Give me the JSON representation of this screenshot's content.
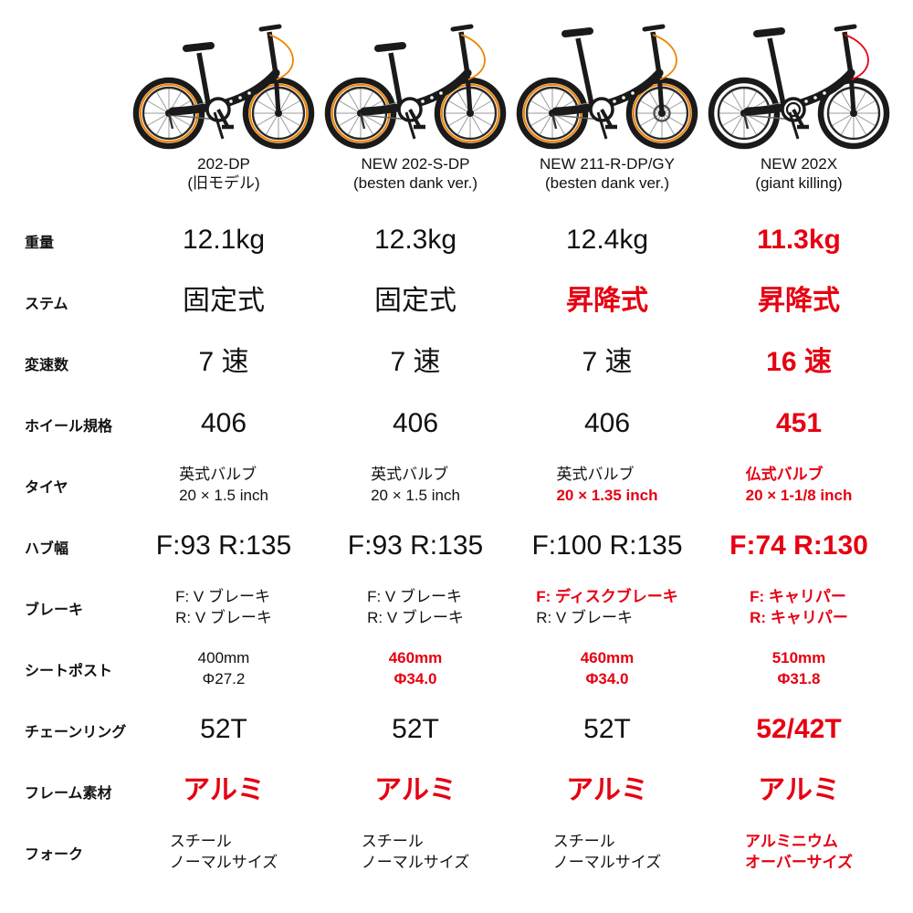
{
  "colors": {
    "text": "#111111",
    "highlight_red": "#e60012",
    "bike_accent_orange": "#f08300",
    "background": "#ffffff"
  },
  "products": [
    {
      "name": "202-DP",
      "subtitle": "(旧モデル)",
      "bike_style": {
        "rim_accent": true,
        "front_disc": false,
        "tall_seat": false,
        "cable_color": "#f08300",
        "double_chainring": false
      }
    },
    {
      "name": "NEW 202-S-DP",
      "subtitle": "(besten dank ver.)",
      "bike_style": {
        "rim_accent": true,
        "front_disc": false,
        "tall_seat": false,
        "cable_color": "#f08300",
        "double_chainring": false
      }
    },
    {
      "name": "NEW 211-R-DP/GY",
      "subtitle": "(besten dank ver.)",
      "bike_style": {
        "rim_accent": true,
        "front_disc": true,
        "tall_seat": true,
        "cable_color": "#f08300",
        "double_chainring": false
      }
    },
    {
      "name": "NEW 202X",
      "subtitle": "(giant killing)",
      "bike_style": {
        "rim_accent": false,
        "front_disc": false,
        "tall_seat": true,
        "cable_color": "#e60012",
        "double_chainring": true
      }
    }
  ],
  "table": {
    "rows": [
      {
        "key": "weight",
        "label": "重量",
        "size": "big",
        "align": "center",
        "cells": [
          {
            "lines": [
              {
                "text": "12.1kg",
                "red": false
              }
            ]
          },
          {
            "lines": [
              {
                "text": "12.3kg",
                "red": false
              }
            ]
          },
          {
            "lines": [
              {
                "text": "12.4kg",
                "red": false
              }
            ]
          },
          {
            "lines": [
              {
                "text": "11.3kg",
                "red": true
              }
            ]
          }
        ]
      },
      {
        "key": "stem",
        "label": "ステム",
        "size": "big",
        "align": "center",
        "cells": [
          {
            "lines": [
              {
                "text": "固定式",
                "red": false
              }
            ]
          },
          {
            "lines": [
              {
                "text": "固定式",
                "red": false
              }
            ]
          },
          {
            "lines": [
              {
                "text": "昇降式",
                "red": true
              }
            ]
          },
          {
            "lines": [
              {
                "text": "昇降式",
                "red": true
              }
            ]
          }
        ]
      },
      {
        "key": "speeds",
        "label": "変速数",
        "size": "big",
        "align": "center",
        "cells": [
          {
            "lines": [
              {
                "text": "7 速",
                "red": false
              }
            ]
          },
          {
            "lines": [
              {
                "text": "7 速",
                "red": false
              }
            ]
          },
          {
            "lines": [
              {
                "text": "7 速",
                "red": false
              }
            ]
          },
          {
            "lines": [
              {
                "text": "16 速",
                "red": true
              }
            ]
          }
        ]
      },
      {
        "key": "wheel-standard",
        "label": "ホイール規格",
        "size": "big",
        "align": "center",
        "cells": [
          {
            "lines": [
              {
                "text": "406",
                "red": false
              }
            ]
          },
          {
            "lines": [
              {
                "text": "406",
                "red": false
              }
            ]
          },
          {
            "lines": [
              {
                "text": "406",
                "red": false
              }
            ]
          },
          {
            "lines": [
              {
                "text": "451",
                "red": true
              }
            ]
          }
        ]
      },
      {
        "key": "tire",
        "label": "タイヤ",
        "size": "small",
        "align": "left",
        "cells": [
          {
            "lines": [
              {
                "text": "英式バルブ",
                "red": false
              },
              {
                "text": "20 × 1.5 inch",
                "red": false
              }
            ]
          },
          {
            "lines": [
              {
                "text": "英式バルブ",
                "red": false
              },
              {
                "text": "20 × 1.5 inch",
                "red": false
              }
            ]
          },
          {
            "lines": [
              {
                "text": "英式バルブ",
                "red": false
              },
              {
                "text": "20 × 1.35 inch",
                "red": true
              }
            ]
          },
          {
            "lines": [
              {
                "text": "仏式バルブ",
                "red": true
              },
              {
                "text": "20 × 1-1/8 inch",
                "red": true
              }
            ]
          }
        ]
      },
      {
        "key": "hub-width",
        "label": "ハブ幅",
        "size": "big",
        "align": "center",
        "cells": [
          {
            "lines": [
              {
                "text": "F:93 R:135",
                "red": false
              }
            ]
          },
          {
            "lines": [
              {
                "text": "F:93 R:135",
                "red": false
              }
            ]
          },
          {
            "lines": [
              {
                "text": "F:100 R:135",
                "red": false
              }
            ]
          },
          {
            "lines": [
              {
                "text": "F:74 R:130",
                "red": true
              }
            ]
          }
        ]
      },
      {
        "key": "brake",
        "label": "ブレーキ",
        "size": "small",
        "align": "left",
        "cells": [
          {
            "lines": [
              {
                "text": "F: V ブレーキ",
                "red": false
              },
              {
                "text": "R: V ブレーキ",
                "red": false
              }
            ]
          },
          {
            "lines": [
              {
                "text": "F: V ブレーキ",
                "red": false
              },
              {
                "text": "R: V ブレーキ",
                "red": false
              }
            ]
          },
          {
            "lines": [
              {
                "text": "F: ディスクブレーキ",
                "red": true
              },
              {
                "text": "R: V ブレーキ",
                "red": false
              }
            ]
          },
          {
            "lines": [
              {
                "text": "F: キャリパー",
                "red": true
              },
              {
                "text": "R: キャリパー",
                "red": true
              }
            ]
          }
        ]
      },
      {
        "key": "seatpost",
        "label": "シートポスト",
        "size": "small",
        "align": "center",
        "cells": [
          {
            "lines": [
              {
                "text": "400mm",
                "red": false
              },
              {
                "text": "Φ27.2",
                "red": false
              }
            ]
          },
          {
            "lines": [
              {
                "text": "460mm",
                "red": true
              },
              {
                "text": "Φ34.0",
                "red": true
              }
            ]
          },
          {
            "lines": [
              {
                "text": "460mm",
                "red": true
              },
              {
                "text": "Φ34.0",
                "red": true
              }
            ]
          },
          {
            "lines": [
              {
                "text": "510mm",
                "red": true
              },
              {
                "text": "Φ31.8",
                "red": true
              }
            ]
          }
        ]
      },
      {
        "key": "chainring",
        "label": "チェーンリング",
        "size": "big",
        "align": "center",
        "cells": [
          {
            "lines": [
              {
                "text": "52T",
                "red": false
              }
            ]
          },
          {
            "lines": [
              {
                "text": "52T",
                "red": false
              }
            ]
          },
          {
            "lines": [
              {
                "text": "52T",
                "red": false
              }
            ]
          },
          {
            "lines": [
              {
                "text": "52/42T",
                "red": true
              }
            ]
          }
        ]
      },
      {
        "key": "frame-material",
        "label": "フレーム素材",
        "size": "big",
        "align": "center",
        "cells": [
          {
            "lines": [
              {
                "text": "アルミ",
                "red": true
              }
            ]
          },
          {
            "lines": [
              {
                "text": "アルミ",
                "red": true
              }
            ]
          },
          {
            "lines": [
              {
                "text": "アルミ",
                "red": true
              }
            ]
          },
          {
            "lines": [
              {
                "text": "アルミ",
                "red": true
              }
            ]
          }
        ]
      },
      {
        "key": "fork",
        "label": "フォーク",
        "size": "small",
        "align": "left",
        "cells": [
          {
            "lines": [
              {
                "text": "スチール",
                "red": false
              },
              {
                "text": "ノーマルサイズ",
                "red": false
              }
            ]
          },
          {
            "lines": [
              {
                "text": "スチール",
                "red": false
              },
              {
                "text": "ノーマルサイズ",
                "red": false
              }
            ]
          },
          {
            "lines": [
              {
                "text": "スチール",
                "red": false
              },
              {
                "text": "ノーマルサイズ",
                "red": false
              }
            ]
          },
          {
            "lines": [
              {
                "text": "アルミニウム",
                "red": true
              },
              {
                "text": "オーバーサイズ",
                "red": true
              }
            ]
          }
        ]
      }
    ]
  }
}
